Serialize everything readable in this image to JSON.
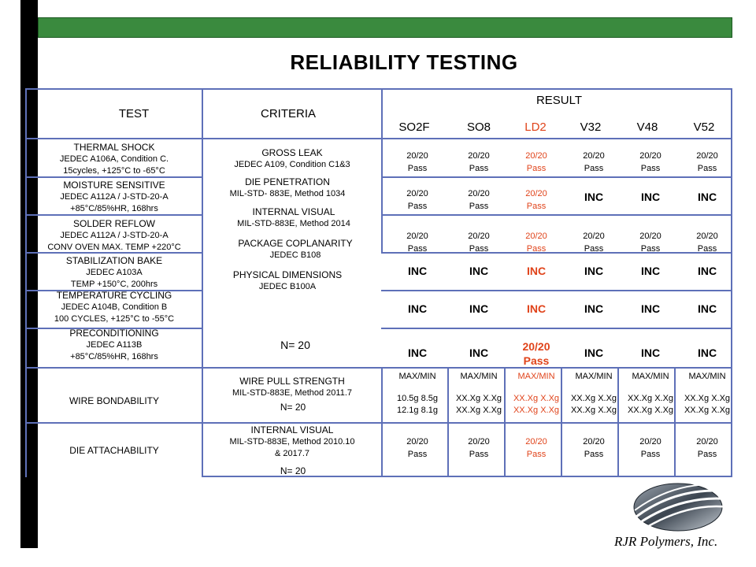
{
  "title": "RELIABILITY TESTING",
  "headers": {
    "test": "TEST",
    "criteria": "CRITERIA",
    "result": "RESULT",
    "columns": [
      "SO2F",
      "SO8",
      "LD2",
      "V32",
      "V48",
      "V52"
    ]
  },
  "tests": [
    {
      "name": "THERMAL SHOCK",
      "l2": "JEDEC A106A, Condition C.",
      "l3": "15cycles, +125°C to -65°C"
    },
    {
      "name": "MOISTURE  SENSITIVE",
      "l2": "JEDEC A112A / J-STD-20-A",
      "l3": "+85°C/85%HR, 168hrs"
    },
    {
      "name": "SOLDER REFLOW",
      "l2": "JEDEC A112A / J-STD-20-A",
      "l3": "CONV OVEN MAX. TEMP +220°C"
    },
    {
      "name": "STABILIZATION  BAKE",
      "l2": "JEDEC A103A",
      "l3": "TEMP +150°C, 200hrs"
    },
    {
      "name": "TEMPERATURE  CYCLING",
      "l2": "JEDEC A104B, Condition B",
      "l3": "100 CYCLES, +125°C to -55°C"
    },
    {
      "name": "PRECONDITIONING",
      "l2": "JEDEC A113B",
      "l3": "+85°C/85%HR, 168hrs"
    }
  ],
  "criteria": {
    "gross_leak": {
      "name": "GROSS LEAK",
      "spec": "JEDEC A109, Condition C1&3"
    },
    "die_penetration": {
      "name": "DIE PENETRATION",
      "spec": "MIL-STD- 883E, Method 1034"
    },
    "internal_visual": {
      "name": "INTERNAL VISUAL",
      "spec": "MIL-STD-883E, Method 2014"
    },
    "coplanarity": {
      "name": "PACKAGE COPLANARITY",
      "spec": "JEDEC B108"
    },
    "dimensions": {
      "name": "PHYSICAL DIMENSIONS",
      "spec": "JEDEC B100A"
    },
    "n": "N= 20"
  },
  "results": {
    "thermal_shock": [
      [
        "20/20",
        "Pass"
      ],
      [
        "20/20",
        "Pass"
      ],
      [
        "20/20",
        "Pass"
      ],
      [
        "20/20",
        "Pass"
      ],
      [
        "20/20",
        "Pass"
      ],
      [
        "20/20",
        "Pass"
      ]
    ],
    "moisture": [
      [
        "20/20",
        "Pass"
      ],
      [
        "20/20",
        "Pass"
      ],
      [
        "20/20",
        "Pass"
      ],
      "INC",
      "INC",
      "INC"
    ],
    "solder_reflow": [
      [
        "20/20",
        "Pass"
      ],
      [
        "20/20",
        "Pass"
      ],
      [
        "20/20",
        "Pass"
      ],
      [
        "20/20",
        "Pass"
      ],
      [
        "20/20",
        "Pass"
      ],
      [
        "20/20",
        "Pass"
      ]
    ],
    "stabilization": [
      "INC",
      "INC",
      "INC",
      "INC",
      "INC",
      "INC"
    ],
    "temp_cycling": [
      "INC",
      "INC",
      "INC",
      "INC",
      "INC",
      "INC"
    ],
    "preconditioning": [
      "INC",
      "INC",
      [
        "20/20",
        "Pass"
      ],
      "INC",
      "INC",
      "INC"
    ]
  },
  "wire_bond": {
    "name": "WIRE BONDABILITY",
    "crit_name": "WIRE PULL STRENGTH",
    "crit_spec": "MIL-STD-883E, Method 2011.7",
    "n": "N= 20",
    "cols": [
      [
        "MAX/MIN",
        "10.5g 8.5g",
        "12.1g 8.1g"
      ],
      [
        "MAX/MIN",
        "XX.Xg X.Xg",
        "XX.Xg X.Xg"
      ],
      [
        "MAX/MIN",
        "XX.Xg X.Xg",
        "XX.Xg X.Xg"
      ],
      [
        "MAX/MIN",
        "XX.Xg X.Xg",
        "XX.Xg X.Xg"
      ],
      [
        "MAX/MIN",
        "XX.Xg X.Xg",
        "XX.Xg X.Xg"
      ],
      [
        "MAX/MIN",
        "XX.Xg X.Xg",
        "XX.Xg X.Xg"
      ]
    ]
  },
  "die_attach": {
    "name": "DIE ATTACHABILITY",
    "crit_name": "INTERNAL VISUAL",
    "crit_l2": "MIL-STD-883E, Method 2010.10",
    "crit_l3": "& 2017.7",
    "n": "N= 20",
    "cols": [
      [
        "20/20",
        "Pass"
      ],
      [
        "20/20",
        "Pass"
      ],
      [
        "20/20",
        "Pass"
      ],
      [
        "20/20",
        "Pass"
      ],
      [
        "20/20",
        "Pass"
      ],
      [
        "20/20",
        "Pass"
      ]
    ]
  },
  "logo": {
    "text": "RJR Polymers, Inc."
  },
  "colors": {
    "accent_red": "#e0431a",
    "green_bar": "#3a8a3e",
    "grid_line": "#5e70b8"
  }
}
